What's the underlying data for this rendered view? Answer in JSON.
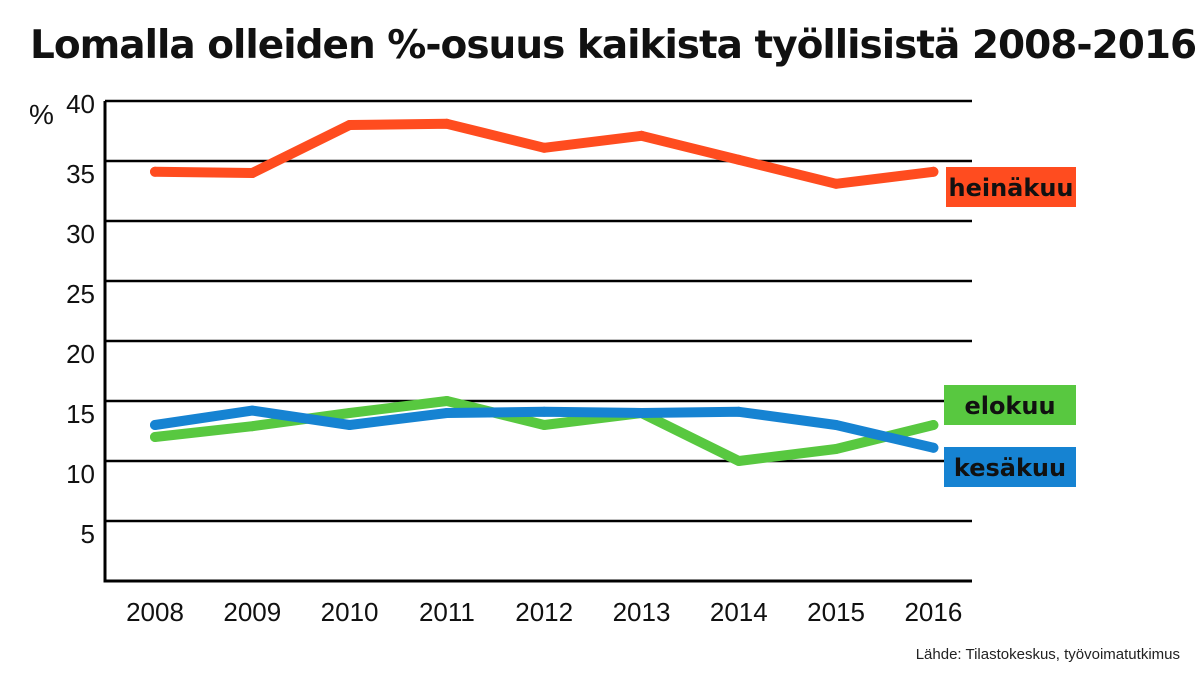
{
  "chart_data": {
    "type": "line",
    "title": "Lomalla olleiden %-osuus kaikista työllisistä 2008-2016",
    "ylabel": "%",
    "xlabel": "",
    "categories": [
      "2008",
      "2009",
      "2010",
      "2011",
      "2012",
      "2013",
      "2014",
      "2015",
      "2016"
    ],
    "ylim": [
      0,
      40
    ],
    "yticks": [
      5,
      10,
      15,
      20,
      25,
      30,
      35,
      40
    ],
    "grid": true,
    "series": [
      {
        "name": "heinäkuu",
        "color": "#ff4c1f",
        "values": [
          34.1,
          34.0,
          38.0,
          38.1,
          36.1,
          37.1,
          35.1,
          33.1,
          34.1
        ]
      },
      {
        "name": "elokuu",
        "color": "#58c840",
        "values": [
          12.0,
          12.9,
          14.0,
          15.0,
          13.0,
          14.0,
          10.0,
          11.0,
          13.0
        ]
      },
      {
        "name": "kesäkuu",
        "color": "#1683d2",
        "values": [
          13.0,
          14.2,
          13.0,
          14.0,
          14.1,
          14.0,
          14.1,
          13.0,
          11.1
        ]
      }
    ]
  },
  "source": "Lähde: Tilastokeskus, työvoimatutkimus"
}
